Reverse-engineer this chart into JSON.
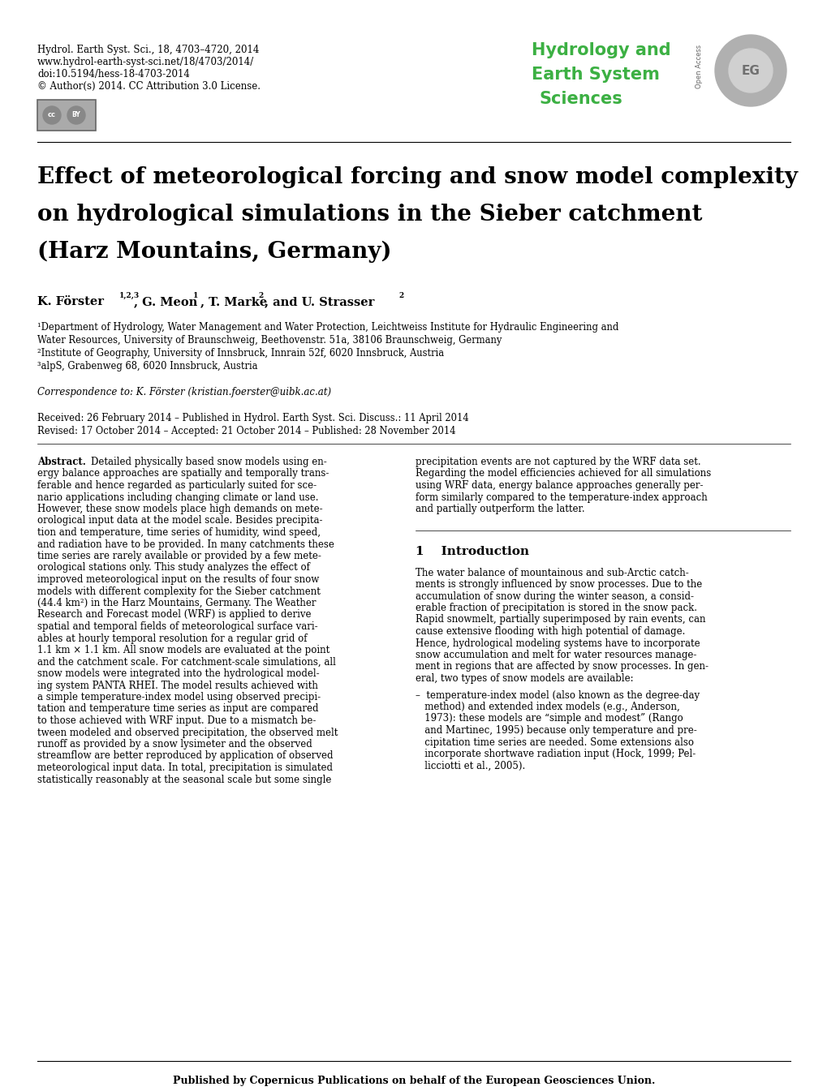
{
  "journal_info_line1": "Hydrol. Earth Syst. Sci., 18, 4703–4720, 2014",
  "journal_info_line2": "www.hydrol-earth-syst-sci.net/18/4703/2014/",
  "journal_info_line3": "doi:10.5194/hess-18-4703-2014",
  "journal_info_line4": "© Author(s) 2014. CC Attribution 3.0 License.",
  "journal_name_line1": "Hydrology and",
  "journal_name_line2": "Earth System",
  "journal_name_line3": "Sciences",
  "journal_name_color": "#3cb043",
  "open_access_text": "Open Access",
  "paper_title_line1": "Effect of meteorological forcing and snow model complexity",
  "paper_title_line2": "on hydrological simulations in the Sieber catchment",
  "paper_title_line3": "(Harz Mountains, Germany)",
  "affiliation1": "¹Department of Hydrology, Water Management and Water Protection, Leichtweiss Institute for Hydraulic Engineering and",
  "affiliation1b": "Water Resources, University of Braunschweig, Beethovenstr. 51a, 38106 Braunschweig, Germany",
  "affiliation2": "²Institute of Geography, University of Innsbruck, Innrain 52f, 6020 Innsbruck, Austria",
  "affiliation3": "³alpS, Grabenweg 68, 6020 Innsbruck, Austria",
  "correspondence": "Correspondence to: K. Förster (kristian.foerster@uibk.ac.at)",
  "received_line1": "Received: 26 February 2014 – Published in Hydrol. Earth Syst. Sci. Discuss.: 11 April 2014",
  "received_line2": "Revised: 17 October 2014 – Accepted: 21 October 2014 – Published: 28 November 2014",
  "abstract_col1_lines": [
    "Abstract. Detailed physically based snow models using en-",
    "ergy balance approaches are spatially and temporally trans-",
    "ferable and hence regarded as particularly suited for sce-",
    "nario applications including changing climate or land use.",
    "However, these snow models place high demands on mete-",
    "orological input data at the model scale. Besides precipita-",
    "tion and temperature, time series of humidity, wind speed,",
    "and radiation have to be provided. In many catchments these",
    "time series are rarely available or provided by a few mete-",
    "orological stations only. This study analyzes the effect of",
    "improved meteorological input on the results of four snow",
    "models with different complexity for the Sieber catchment",
    "(44.4 km²) in the Harz Mountains, Germany. The Weather",
    "Research and Forecast model (WRF) is applied to derive",
    "spatial and temporal fields of meteorological surface vari-",
    "ables at hourly temporal resolution for a regular grid of",
    "1.1 km × 1.1 km. All snow models are evaluated at the point",
    "and the catchment scale. For catchment-scale simulations, all",
    "snow models were integrated into the hydrological model-",
    "ing system PANTA RHEI. The model results achieved with",
    "a simple temperature-index model using observed precipi-",
    "tation and temperature time series as input are compared",
    "to those achieved with WRF input. Due to a mismatch be-",
    "tween modeled and observed precipitation, the observed melt",
    "runoff as provided by a snow lysimeter and the observed",
    "streamflow are better reproduced by application of observed",
    "meteorological input data. In total, precipitation is simulated",
    "statistically reasonably at the seasonal scale but some single"
  ],
  "abstract_col2_lines": [
    "precipitation events are not captured by the WRF data set.",
    "Regarding the model efficiencies achieved for all simulations",
    "using WRF data, energy balance approaches generally per-",
    "form similarly compared to the temperature-index approach",
    "and partially outperform the latter."
  ],
  "section1_number": "1",
  "section1_title": "Introduction",
  "intro_lines": [
    "The water balance of mountainous and sub-Arctic catch-",
    "ments is strongly influenced by snow processes. Due to the",
    "accumulation of snow during the winter season, a consid-",
    "erable fraction of precipitation is stored in the snow pack.",
    "Rapid snowmelt, partially superimposed by rain events, can",
    "cause extensive flooding with high potential of damage.",
    "Hence, hydrological modeling systems have to incorporate",
    "snow accumulation and melt for water resources manage-",
    "ment in regions that are affected by snow processes. In gen-",
    "eral, two types of snow models are available:"
  ],
  "bullet_lines": [
    "–  temperature-index model (also known as the degree-day",
    "   method) and extended index models (e.g., Anderson,",
    "   1973): these models are “simple and modest” (Rango",
    "   and Martinec, 1995) because only temperature and pre-",
    "   cipitation time series are needed. Some extensions also",
    "   incorporate shortwave radiation input (Hock, 1999; Pel-",
    "   licciotti et al., 2005)."
  ],
  "footer_text": "Published by Copernicus Publications on behalf of the European Geosciences Union.",
  "background_color": "#ffffff",
  "text_color": "#000000"
}
